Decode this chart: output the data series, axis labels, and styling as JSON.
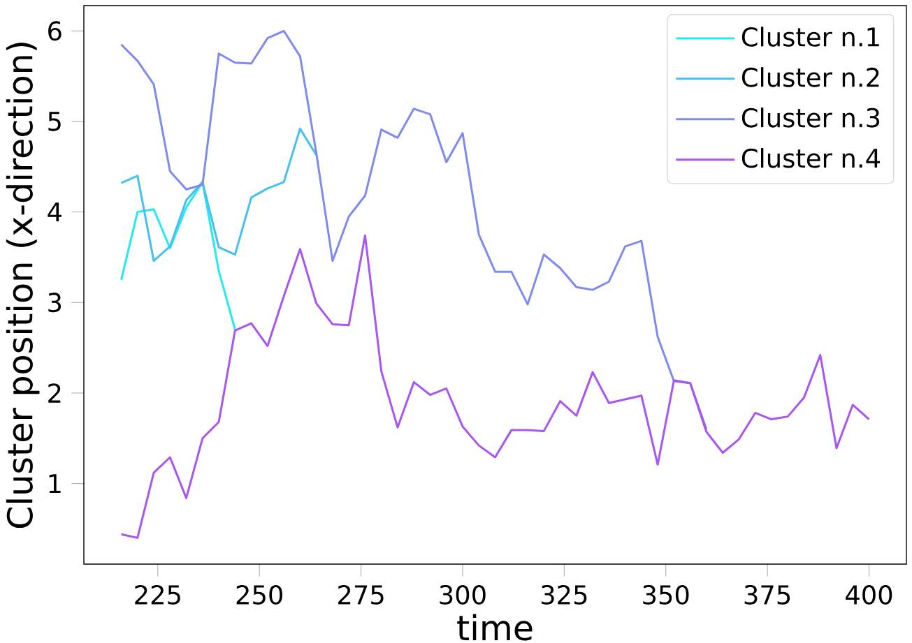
{
  "chart_data": {
    "type": "line",
    "xlabel": "time",
    "ylabel": "Cluster position (x-direction)",
    "xlim": [
      206.8,
      409.2
    ],
    "ylim": [
      0.11,
      6.28
    ],
    "xticks": [
      225,
      250,
      275,
      300,
      325,
      350,
      375,
      400
    ],
    "yticks": [
      1,
      2,
      3,
      4,
      5,
      6
    ],
    "legend": "top right",
    "series": [
      {
        "name": "Cluster n.1",
        "color": "#22eaf2",
        "x": [
          216,
          220,
          224,
          228,
          232,
          236,
          240,
          244
        ],
        "values": [
          3.25,
          4.0,
          4.03,
          3.6,
          4.05,
          4.33,
          3.35,
          2.7
        ]
      },
      {
        "name": "Cluster n.2",
        "color": "#45c0f0",
        "x": [
          216,
          220,
          224,
          228,
          232,
          236,
          240,
          244,
          248,
          252,
          256,
          260,
          264
        ],
        "values": [
          4.32,
          4.4,
          3.46,
          3.62,
          4.13,
          4.33,
          3.61,
          3.53,
          4.16,
          4.26,
          4.33,
          4.92,
          4.63
        ]
      },
      {
        "name": "Cluster n.3",
        "color": "#7f8aef",
        "x": [
          216,
          220,
          224,
          228,
          232,
          236,
          240,
          244,
          248,
          252,
          256,
          260,
          264,
          268,
          272,
          276,
          280,
          284,
          288,
          292,
          296,
          300,
          304,
          308,
          312,
          316,
          320,
          324,
          328,
          332,
          336,
          340,
          344,
          348,
          352,
          356,
          360
        ],
        "values": [
          5.85,
          5.67,
          5.41,
          4.45,
          4.25,
          4.3,
          5.75,
          5.65,
          5.64,
          5.92,
          6.0,
          5.72,
          4.65,
          3.46,
          3.95,
          4.18,
          4.91,
          4.82,
          5.14,
          5.08,
          4.55,
          4.87,
          3.75,
          3.34,
          3.34,
          2.98,
          3.53,
          3.38,
          3.17,
          3.14,
          3.23,
          3.62,
          3.68,
          2.62,
          2.13,
          2.11,
          1.6
        ]
      },
      {
        "name": "Cluster n.4",
        "color": "#a855f2",
        "x": [
          216,
          220,
          224,
          228,
          232,
          236,
          240,
          244,
          248,
          252,
          256,
          260,
          264,
          268,
          272,
          276,
          280,
          284,
          288,
          292,
          296,
          300,
          304,
          308,
          312,
          316,
          320,
          324,
          328,
          332,
          336,
          340,
          344,
          348,
          352,
          356,
          360,
          364,
          368,
          372,
          376,
          380,
          384,
          388,
          392,
          396,
          400
        ],
        "values": [
          0.44,
          0.4,
          1.12,
          1.29,
          0.84,
          1.5,
          1.68,
          2.69,
          2.77,
          2.52,
          3.07,
          3.59,
          2.99,
          2.76,
          2.75,
          3.74,
          2.24,
          1.62,
          2.12,
          1.98,
          2.05,
          1.63,
          1.42,
          1.29,
          1.59,
          1.59,
          1.58,
          1.91,
          1.75,
          2.23,
          1.89,
          1.93,
          1.97,
          1.21,
          2.14,
          2.11,
          1.57,
          1.34,
          1.49,
          1.78,
          1.71,
          1.74,
          1.95,
          2.42,
          1.39,
          1.87,
          1.71
        ]
      }
    ]
  }
}
